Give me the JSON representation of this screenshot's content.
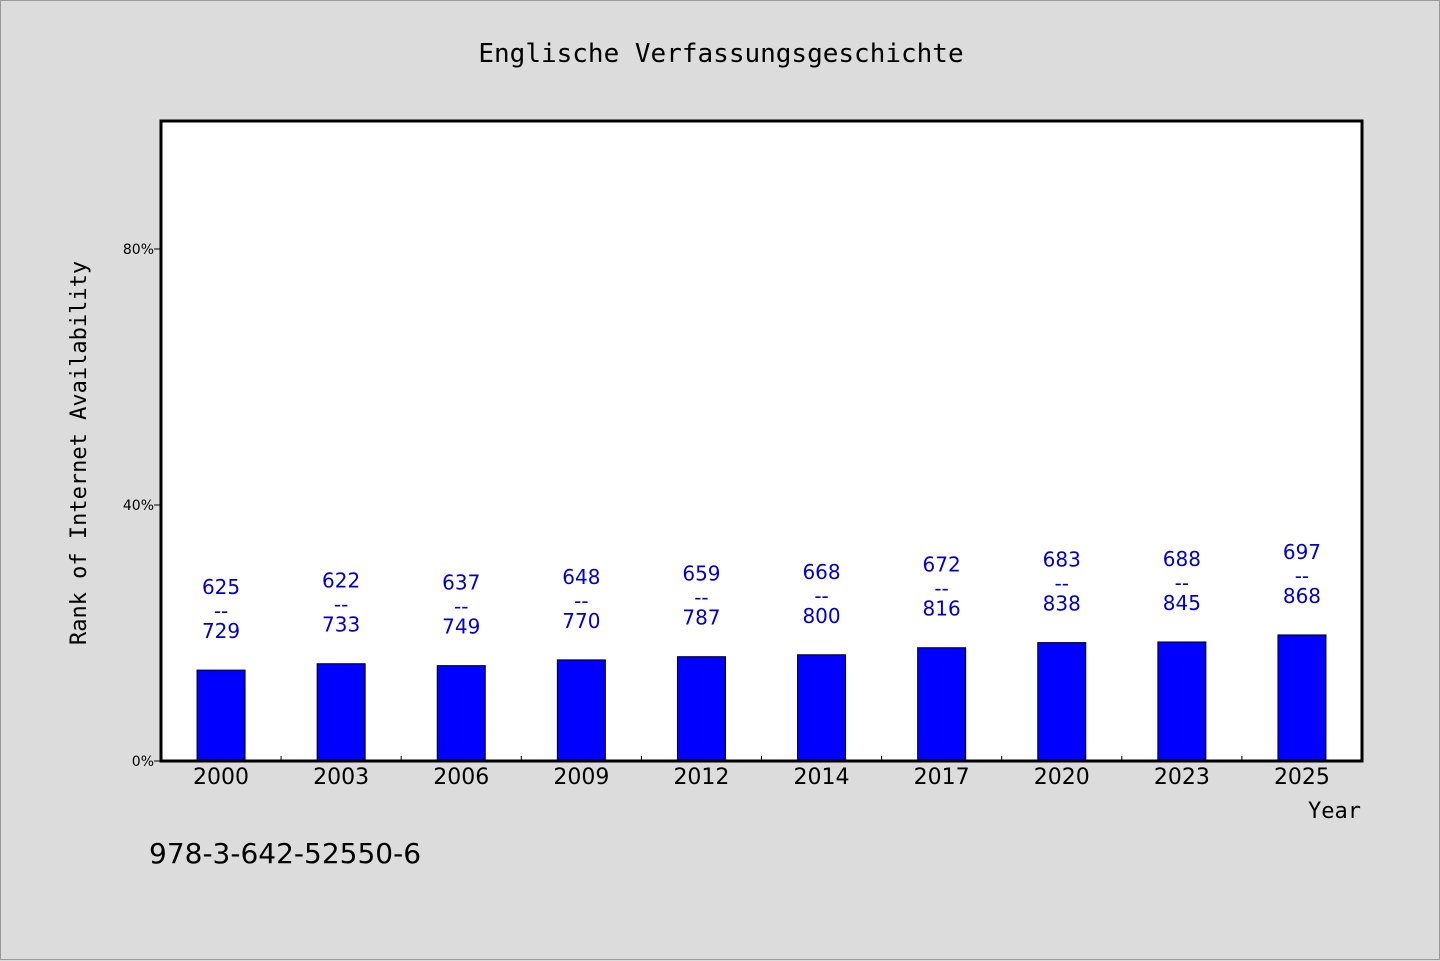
{
  "chart_data": {
    "type": "bar",
    "title": "Englische Verfassungsgeschichte",
    "xlabel": "Year",
    "ylabel": "Rank of Internet Availability",
    "categories": [
      "2000",
      "2003",
      "2006",
      "2009",
      "2012",
      "2014",
      "2017",
      "2020",
      "2023",
      "2025"
    ],
    "values": [
      14.2,
      15.2,
      14.9,
      15.8,
      16.3,
      16.6,
      17.7,
      18.5,
      18.6,
      19.7
    ],
    "data_labels": [
      {
        "top": "625",
        "sep": "--",
        "bottom": "729"
      },
      {
        "top": "622",
        "sep": "--",
        "bottom": "733"
      },
      {
        "top": "637",
        "sep": "--",
        "bottom": "749"
      },
      {
        "top": "648",
        "sep": "--",
        "bottom": "770"
      },
      {
        "top": "659",
        "sep": "--",
        "bottom": "787"
      },
      {
        "top": "668",
        "sep": "--",
        "bottom": "800"
      },
      {
        "top": "672",
        "sep": "--",
        "bottom": "816"
      },
      {
        "top": "683",
        "sep": "--",
        "bottom": "838"
      },
      {
        "top": "688",
        "sep": "--",
        "bottom": "845"
      },
      {
        "top": "697",
        "sep": "--",
        "bottom": "868"
      }
    ],
    "ylim": [
      0,
      100
    ],
    "yticks": [
      0,
      40,
      80
    ],
    "ytick_labels": [
      "0%",
      "40%",
      "80%"
    ],
    "grid": false,
    "bar_color": "#0000ff",
    "label_color": "#0000cc",
    "plot_background": "#ffffff",
    "page_background": "#dcdcdc"
  },
  "footer": {
    "isbn": "978-3-642-52550-6"
  }
}
